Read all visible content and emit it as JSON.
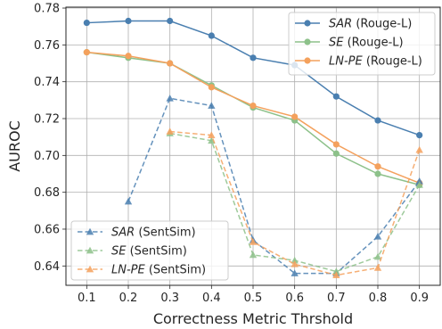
{
  "chart_data": {
    "type": "line",
    "title": "",
    "xlabel": "Correctness Metric Thrshold",
    "ylabel": "AUROC",
    "x": [
      0.1,
      0.2,
      0.3,
      0.4,
      0.5,
      0.6,
      0.7,
      0.8,
      0.9
    ],
    "x_tick_labels": [
      "0.1",
      "0.2",
      "0.3",
      "0.4",
      "0.5",
      "0.6",
      "0.7",
      "0.8",
      "0.9"
    ],
    "xlim": [
      0.05,
      0.95
    ],
    "ylim": [
      0.6295,
      0.7805
    ],
    "y_ticks": [
      0.64,
      0.66,
      0.68,
      0.7,
      0.72,
      0.74,
      0.76,
      0.78
    ],
    "y_tick_labels": [
      "0.64",
      "0.66",
      "0.68",
      "0.70",
      "0.72",
      "0.74",
      "0.76",
      "0.78"
    ],
    "grid": true,
    "series": [
      {
        "method": "SAR",
        "metric": " (Rouge-L)",
        "color": "#4a7fb0",
        "style": "solid",
        "marker": "circle",
        "values": [
          0.772,
          0.773,
          0.773,
          0.765,
          0.753,
          0.749,
          0.732,
          0.719,
          0.711
        ]
      },
      {
        "method": "SE",
        "metric": " (Rouge-L)",
        "color": "#8dc18a",
        "style": "solid",
        "marker": "circle",
        "values": [
          0.756,
          0.753,
          0.75,
          0.738,
          0.726,
          0.719,
          0.701,
          0.69,
          0.684
        ]
      },
      {
        "method": "LN-PE",
        "metric": " (Rouge-L)",
        "color": "#f4a15d",
        "style": "solid",
        "marker": "circle",
        "values": [
          0.756,
          0.754,
          0.75,
          0.737,
          0.727,
          0.721,
          0.706,
          0.694,
          0.685
        ]
      },
      {
        "method": "SAR",
        "metric": " (SentSim)",
        "color": "#4a7fb0",
        "style": "dashed",
        "marker": "triangle",
        "values": [
          null,
          0.675,
          0.731,
          0.727,
          0.654,
          0.636,
          0.636,
          0.656,
          0.686
        ]
      },
      {
        "method": "SE",
        "metric": " (SentSim)",
        "color": "#8dc18a",
        "style": "dashed",
        "marker": "triangle",
        "values": [
          null,
          null,
          0.712,
          0.708,
          0.646,
          0.643,
          0.637,
          0.645,
          0.684
        ]
      },
      {
        "method": "LN-PE",
        "metric": " (SentSim)",
        "color": "#f4a15d",
        "style": "dashed",
        "marker": "triangle",
        "values": [
          null,
          null,
          0.713,
          0.711,
          0.653,
          0.641,
          0.635,
          0.639,
          0.703
        ]
      }
    ],
    "legends": [
      {
        "position": "top-right",
        "series_indices": [
          0,
          1,
          2
        ]
      },
      {
        "position": "bottom-left",
        "series_indices": [
          3,
          4,
          5
        ]
      }
    ]
  }
}
